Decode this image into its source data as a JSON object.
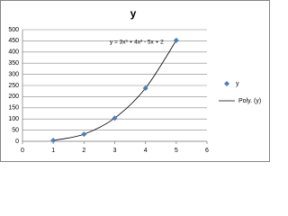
{
  "chart_data": {
    "type": "scatter",
    "title": "y",
    "x": [
      1,
      2,
      3,
      4,
      5
    ],
    "series": [
      {
        "name": "y",
        "color": "#4a7ebb",
        "values": [
          4,
          32,
          104,
          238,
          452
        ]
      }
    ],
    "trendline": {
      "name": "Poly. (y)",
      "color": "#000000",
      "equation": "y = 3x³ + 4x² - 5x + 2"
    },
    "xlim": [
      0,
      6
    ],
    "xticks": [
      0,
      1,
      2,
      3,
      4,
      5,
      6
    ],
    "ylim": [
      0,
      500
    ],
    "yticks": [
      0,
      50,
      100,
      150,
      200,
      250,
      300,
      350,
      400,
      450,
      500
    ],
    "grid": true,
    "legend": "right"
  }
}
